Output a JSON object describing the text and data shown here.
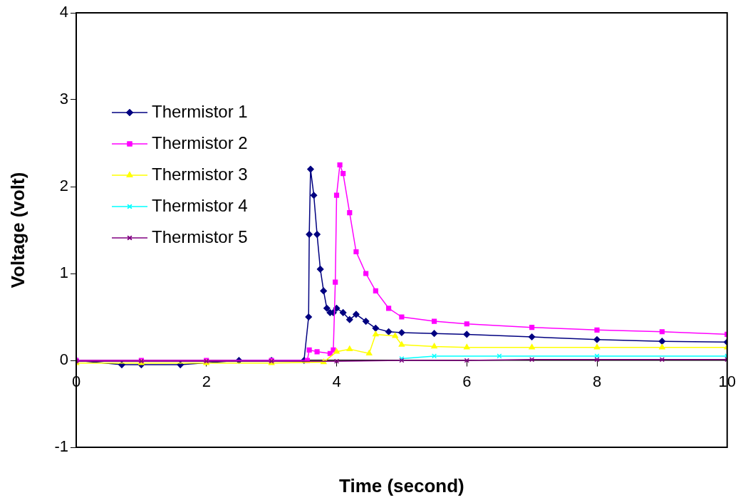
{
  "chart_data": {
    "type": "line",
    "xlabel": "Time (second)",
    "ylabel": "Voltage (volt)",
    "xlim": [
      0,
      10
    ],
    "xticks": [
      0,
      2,
      4,
      6,
      8,
      10
    ],
    "ylim": [
      -1,
      4
    ],
    "yticks": [
      -1,
      0,
      1,
      2,
      3,
      4
    ],
    "grid": false,
    "legend": "top left",
    "line_style": "solid",
    "series": [
      {
        "name": "Thermistor 1",
        "color": "#000080",
        "marker": "diamond",
        "x": [
          0,
          0.7,
          1.0,
          1.6,
          2.5,
          3.0,
          3.5,
          3.57,
          3.58,
          3.6,
          3.65,
          3.7,
          3.75,
          3.8,
          3.85,
          3.9,
          3.95,
          4.0,
          4.1,
          4.2,
          4.3,
          4.45,
          4.6,
          4.8,
          5.0,
          5.5,
          6,
          7,
          8,
          9,
          10
        ],
        "values": [
          0,
          -0.05,
          -0.05,
          -0.05,
          0,
          0,
          0,
          0.5,
          1.45,
          2.2,
          1.9,
          1.45,
          1.05,
          0.8,
          0.6,
          0.55,
          0.55,
          0.6,
          0.55,
          0.47,
          0.53,
          0.45,
          0.37,
          0.33,
          0.32,
          0.31,
          0.3,
          0.27,
          0.24,
          0.22,
          0.21
        ]
      },
      {
        "name": "Thermistor 2",
        "color": "#ff00ff",
        "marker": "square",
        "x": [
          0,
          1,
          2,
          3,
          3.55,
          3.58,
          3.7,
          3.9,
          3.95,
          3.98,
          4.0,
          4.05,
          4.1,
          4.2,
          4.3,
          4.45,
          4.6,
          4.8,
          5.0,
          5.5,
          6,
          7,
          8,
          9,
          10
        ],
        "values": [
          0,
          0,
          0,
          0,
          0,
          0.12,
          0.1,
          0.08,
          0.12,
          0.9,
          1.9,
          2.25,
          2.15,
          1.7,
          1.25,
          1.0,
          0.8,
          0.6,
          0.5,
          0.45,
          0.42,
          0.38,
          0.35,
          0.33,
          0.3
        ]
      },
      {
        "name": "Thermistor 3",
        "color": "#ffff00",
        "marker": "triangle",
        "x": [
          0,
          1,
          2,
          3,
          3.8,
          4.0,
          4.2,
          4.5,
          4.6,
          4.9,
          5.0,
          5.5,
          6,
          7,
          8,
          9,
          10
        ],
        "values": [
          -0.03,
          -0.03,
          -0.03,
          -0.03,
          -0.02,
          0.1,
          0.13,
          0.08,
          0.3,
          0.28,
          0.18,
          0.16,
          0.15,
          0.15,
          0.15,
          0.15,
          0.15
        ]
      },
      {
        "name": "Thermistor 4",
        "color": "#00ffff",
        "marker": "cross",
        "x": [
          5,
          5.5,
          6.5,
          8,
          10
        ],
        "values": [
          0.02,
          0.05,
          0.05,
          0.05,
          0.05
        ]
      },
      {
        "name": "Thermistor 5",
        "color": "#800080",
        "marker": "cross",
        "x": [
          0,
          1,
          2,
          3,
          4,
          5,
          6,
          7,
          8,
          9,
          10
        ],
        "values": [
          -0.01,
          -0.01,
          -0.01,
          -0.01,
          -0.01,
          0,
          0,
          0.01,
          0.01,
          0.01,
          0.01
        ]
      }
    ]
  }
}
